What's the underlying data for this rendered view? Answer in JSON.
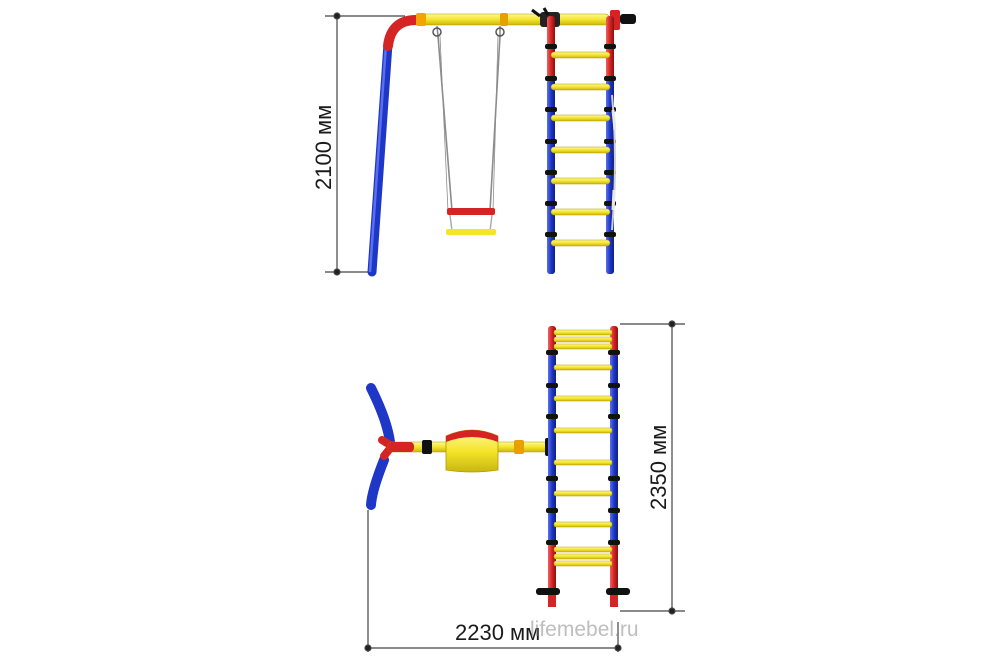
{
  "dimensions": {
    "height": "2100 мм",
    "depth": "2350 мм",
    "width": "2230 мм"
  },
  "watermark": "lifemebel.ru",
  "colors": {
    "frame_red": "#d42424",
    "frame_blue": "#1e37c6",
    "bar_yellow": "#f4e52a",
    "chain_gray": "#8c8c8c",
    "joint_black": "#111111",
    "dimension_line": "#444444"
  },
  "views": [
    "front-elevation",
    "top-plan"
  ]
}
